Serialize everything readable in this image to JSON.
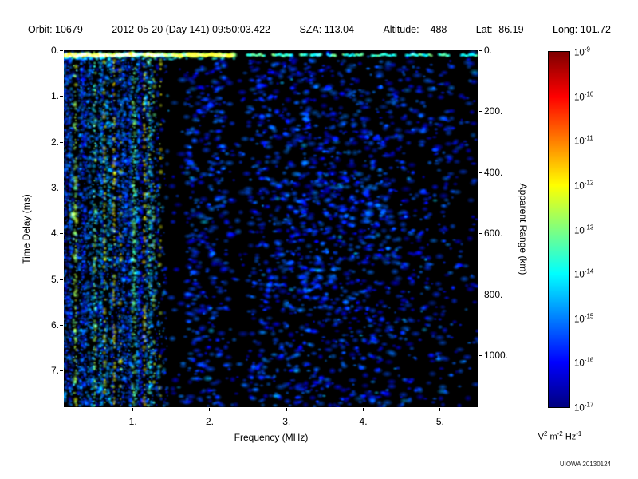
{
  "header": {
    "orbit": "Orbit: 10679",
    "datetime": "2012-05-20 (Day 141) 09:50:03.422",
    "sza": "SZA: 113.04",
    "altitude": "Altitude:    488",
    "lat": "Lat: -86.19",
    "long": "Long: 101.72"
  },
  "chart_data": {
    "type": "heatmap",
    "title": "",
    "xlabel": "Frequency (MHz)",
    "ylabel_left": "Time Delay (ms)",
    "ylabel_right": "Apparent Range (km)",
    "background": "#000000",
    "x_range_mhz": [
      0.1,
      5.5
    ],
    "x_ticks": [
      "1.",
      "2.",
      "3.",
      "4.",
      "5."
    ],
    "x_tick_values": [
      1,
      2,
      3,
      4,
      5
    ],
    "y_left_range_ms": [
      0,
      7.8
    ],
    "y_left_ticks": [
      "0.",
      "1.",
      "2.",
      "3.",
      "4.",
      "5.",
      "6.",
      "7."
    ],
    "y_left_tick_values": [
      0,
      1,
      2,
      3,
      4,
      5,
      6,
      7
    ],
    "y_right_range_km": [
      0,
      1170
    ],
    "y_right_ticks": [
      "0.",
      "200.",
      "400.",
      "600.",
      "800.",
      "1000."
    ],
    "y_right_tick_values": [
      0,
      200,
      400,
      600,
      800,
      1000
    ],
    "colorbar": {
      "scale": "log",
      "colormap": "jet",
      "top_value": "1e-9",
      "bottom_value": "1e-17",
      "tick_exponents": [
        "-9",
        "-10",
        "-11",
        "-12",
        "-13",
        "-14",
        "-15",
        "-16",
        "-17"
      ],
      "unit_parts": [
        [
          "V",
          "2"
        ],
        [
          "m",
          "-2"
        ],
        [
          "Hz",
          "-1"
        ]
      ]
    },
    "features": {
      "surface_echo_band_ms": 0.12,
      "ionospheric_noise_max_mhz": 1.5,
      "quiet_bands_mhz": [
        [
          1.5,
          1.68
        ],
        [
          2.22,
          2.5
        ]
      ],
      "description": "Radar sounder ionogram: bright cyan-green horizontal echo near 0.1 ms across all frequencies (solid below ~2.3 MHz, dashed above), strong vertical ionospheric noise striations below ~1.5 MHz, diffuse weak blue scatter (~1e-16 V2 m-2 Hz-1) elsewhere on black background, denser cloud near 4 MHz."
    }
  },
  "footer": {
    "credit": "UIOWA 20130124"
  }
}
